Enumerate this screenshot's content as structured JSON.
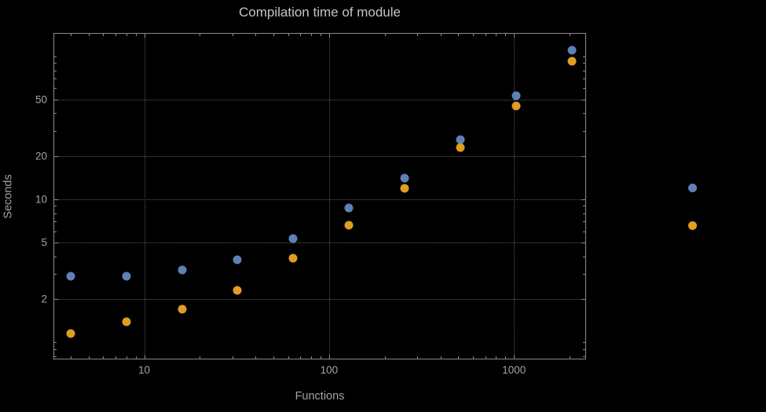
{
  "colors": {
    "background": "#000000",
    "frame": "#8a8a8a",
    "grid": "#5a5a5a",
    "tick_label": "#a3a3a3",
    "title": "#c5c5c5",
    "series_blue": "#5E81B5",
    "series_orange": "#E19C24"
  },
  "chart_data": {
    "type": "scatter",
    "title": "Compilation time of module",
    "xlabel": "Functions",
    "ylabel": "Seconds",
    "x_scale": "log",
    "y_scale": "log",
    "xlim": [
      3.26,
      2430
    ],
    "ylim": [
      0.77,
      144
    ],
    "grid": "dotted",
    "x_ticks": [
      {
        "value": 10,
        "label": "10"
      },
      {
        "value": 100,
        "label": "100"
      },
      {
        "value": 1000,
        "label": "1000"
      }
    ],
    "y_ticks": [
      {
        "value": 2,
        "label": "2"
      },
      {
        "value": 5,
        "label": "5"
      },
      {
        "value": 10,
        "label": "10"
      },
      {
        "value": 20,
        "label": "20"
      },
      {
        "value": 50,
        "label": "50"
      }
    ],
    "series": [
      {
        "name": "blue-series",
        "color": "#5E81B5",
        "points": [
          [
            4,
            2.9
          ],
          [
            8,
            2.9
          ],
          [
            16,
            3.2
          ],
          [
            32,
            3.8
          ],
          [
            64,
            5.3
          ],
          [
            128,
            8.7
          ],
          [
            256,
            14
          ],
          [
            512,
            26
          ],
          [
            1024,
            53
          ],
          [
            2048,
            110
          ]
        ]
      },
      {
        "name": "orange-series",
        "color": "#E19C24",
        "points": [
          [
            4,
            1.15
          ],
          [
            8,
            1.4
          ],
          [
            16,
            1.7
          ],
          [
            32,
            2.3
          ],
          [
            64,
            3.9
          ],
          [
            128,
            6.6
          ],
          [
            256,
            12
          ],
          [
            512,
            23
          ],
          [
            1024,
            45
          ],
          [
            2048,
            92
          ]
        ]
      }
    ],
    "legend_markers": [
      {
        "color": "#5E81B5"
      },
      {
        "color": "#E19C24"
      }
    ]
  }
}
